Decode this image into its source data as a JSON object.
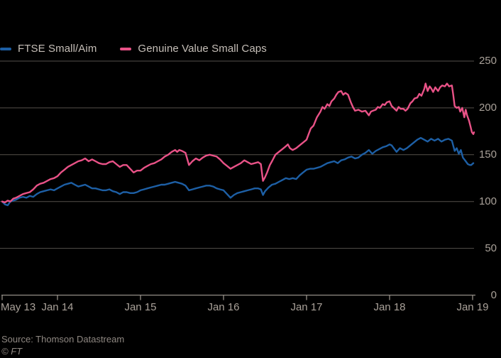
{
  "colors": {
    "background": "#000000",
    "gridline": "#55504b",
    "axis": "#948d86",
    "tick": "#948d86",
    "axis_text": "#a9a199",
    "legend_text": "#c6bfb8",
    "source_text": "#8f8882",
    "series_blue": "#1d5fa5",
    "series_pink": "#e95287"
  },
  "legend": {
    "items": [
      {
        "label": "FTSE Small/Aim",
        "color": "#1d5fa5"
      },
      {
        "label": "Genuine Value Small Caps",
        "color": "#e95287"
      }
    ]
  },
  "footer": {
    "source": "Source: Thomson Datastream",
    "copyright": "© FT"
  },
  "chart_data": {
    "type": "line",
    "title": "",
    "xlabel": "",
    "ylabel": "",
    "x_unit": "months since May 2013",
    "x_tick_labels": [
      "May 13",
      "Jan 14",
      "Jan 15",
      "Jan 16",
      "Jan 17",
      "Jan 18",
      "Jan 19"
    ],
    "x_tick_months": [
      0,
      8,
      20,
      32,
      44,
      56,
      68
    ],
    "y_ticks": [
      0,
      50,
      100,
      150,
      200,
      250
    ],
    "ylim": [
      0,
      250
    ],
    "xlim_months": [
      0,
      68.3
    ],
    "grid": "horizontal",
    "legend_position": "top-left",
    "series": [
      {
        "name": "FTSE Small/Aim",
        "color": "#1d5fa5",
        "points": [
          [
            0,
            100
          ],
          [
            0.4,
            97
          ],
          [
            0.8,
            96
          ],
          [
            1.2,
            100
          ],
          [
            2,
            102
          ],
          [
            2.5,
            104
          ],
          [
            3,
            105
          ],
          [
            3.5,
            104
          ],
          [
            4,
            106
          ],
          [
            4.5,
            105
          ],
          [
            5,
            108
          ],
          [
            5.5,
            110
          ],
          [
            6,
            111
          ],
          [
            6.5,
            112
          ],
          [
            7,
            113
          ],
          [
            7.5,
            112
          ],
          [
            8,
            114
          ],
          [
            8.5,
            116
          ],
          [
            9,
            118
          ],
          [
            9.5,
            119
          ],
          [
            10,
            120
          ],
          [
            10.5,
            118
          ],
          [
            11,
            116
          ],
          [
            11.5,
            117
          ],
          [
            12,
            118
          ],
          [
            12.5,
            116
          ],
          [
            13,
            114
          ],
          [
            13.5,
            114
          ],
          [
            14,
            113
          ],
          [
            14.5,
            112
          ],
          [
            15,
            112
          ],
          [
            15.5,
            113
          ],
          [
            16,
            111
          ],
          [
            16.5,
            110
          ],
          [
            17,
            108
          ],
          [
            17.5,
            110
          ],
          [
            18,
            110
          ],
          [
            18.5,
            109
          ],
          [
            19,
            109
          ],
          [
            19.5,
            110
          ],
          [
            20,
            112
          ],
          [
            20.5,
            113
          ],
          [
            21,
            114
          ],
          [
            21.5,
            115
          ],
          [
            22,
            116
          ],
          [
            22.5,
            117
          ],
          [
            23,
            118
          ],
          [
            23.5,
            118
          ],
          [
            24,
            119
          ],
          [
            24.5,
            120
          ],
          [
            25,
            121
          ],
          [
            25.5,
            120
          ],
          [
            26,
            119
          ],
          [
            26.5,
            117
          ],
          [
            27,
            112
          ],
          [
            27.5,
            113
          ],
          [
            28,
            114
          ],
          [
            28.5,
            115
          ],
          [
            29,
            116
          ],
          [
            29.5,
            117
          ],
          [
            30,
            117
          ],
          [
            30.5,
            116
          ],
          [
            31,
            114
          ],
          [
            31.5,
            113
          ],
          [
            32,
            112
          ],
          [
            32.5,
            108
          ],
          [
            33,
            104
          ],
          [
            33.5,
            107
          ],
          [
            34,
            109
          ],
          [
            34.5,
            110
          ],
          [
            35,
            111
          ],
          [
            35.5,
            112
          ],
          [
            36,
            113
          ],
          [
            36.5,
            114
          ],
          [
            37,
            114
          ],
          [
            37.4,
            113
          ],
          [
            37.7,
            107
          ],
          [
            38,
            111
          ],
          [
            38.5,
            115
          ],
          [
            39,
            118
          ],
          [
            39.5,
            119
          ],
          [
            40,
            121
          ],
          [
            40.5,
            123
          ],
          [
            41,
            125
          ],
          [
            41.5,
            124
          ],
          [
            42,
            125
          ],
          [
            42.5,
            124
          ],
          [
            43,
            128
          ],
          [
            43.5,
            131
          ],
          [
            44,
            134
          ],
          [
            44.5,
            135
          ],
          [
            45,
            135
          ],
          [
            45.5,
            136
          ],
          [
            46,
            137
          ],
          [
            46.5,
            139
          ],
          [
            47,
            141
          ],
          [
            47.5,
            142
          ],
          [
            48,
            143
          ],
          [
            48.5,
            141
          ],
          [
            49,
            144
          ],
          [
            49.5,
            145
          ],
          [
            50,
            147
          ],
          [
            50.5,
            148
          ],
          [
            51,
            146
          ],
          [
            51.5,
            147
          ],
          [
            52,
            150
          ],
          [
            52.5,
            152
          ],
          [
            53,
            155
          ],
          [
            53.5,
            151
          ],
          [
            54,
            154
          ],
          [
            54.5,
            156
          ],
          [
            55,
            158
          ],
          [
            55.5,
            159
          ],
          [
            56,
            161
          ],
          [
            56.3,
            160
          ],
          [
            57,
            153
          ],
          [
            57.5,
            157
          ],
          [
            58,
            155
          ],
          [
            58.5,
            157
          ],
          [
            59,
            160
          ],
          [
            59.5,
            163
          ],
          [
            60,
            166
          ],
          [
            60.5,
            168
          ],
          [
            61,
            166
          ],
          [
            61.5,
            164
          ],
          [
            62,
            167
          ],
          [
            62.5,
            165
          ],
          [
            63,
            167
          ],
          [
            63.5,
            164
          ],
          [
            64,
            166
          ],
          [
            64.5,
            167
          ],
          [
            65,
            165
          ],
          [
            65.4,
            154
          ],
          [
            65.7,
            157
          ],
          [
            66,
            151
          ],
          [
            66.3,
            155
          ],
          [
            66.6,
            147
          ],
          [
            67,
            143
          ],
          [
            67.3,
            140
          ],
          [
            67.6,
            139
          ],
          [
            67.8,
            139
          ],
          [
            68.1,
            141
          ]
        ]
      },
      {
        "name": "Genuine Value Small Caps",
        "color": "#e95287",
        "points": [
          [
            0,
            100
          ],
          [
            0.4,
            99
          ],
          [
            0.8,
            101
          ],
          [
            1.2,
            100
          ],
          [
            1.6,
            103
          ],
          [
            2,
            104
          ],
          [
            2.5,
            106
          ],
          [
            3,
            108
          ],
          [
            3.5,
            109
          ],
          [
            4,
            110
          ],
          [
            4.5,
            113
          ],
          [
            5,
            117
          ],
          [
            5.5,
            119
          ],
          [
            6,
            120
          ],
          [
            6.5,
            122
          ],
          [
            7,
            124
          ],
          [
            7.5,
            125
          ],
          [
            8,
            127
          ],
          [
            8.5,
            131
          ],
          [
            9,
            134
          ],
          [
            9.5,
            137
          ],
          [
            10,
            139
          ],
          [
            10.5,
            141
          ],
          [
            11,
            143
          ],
          [
            11.5,
            144
          ],
          [
            12,
            146
          ],
          [
            12.5,
            143
          ],
          [
            13,
            145
          ],
          [
            13.5,
            143
          ],
          [
            14,
            141
          ],
          [
            14.5,
            140
          ],
          [
            15,
            140
          ],
          [
            15.5,
            142
          ],
          [
            16,
            143
          ],
          [
            16.5,
            140
          ],
          [
            17,
            137
          ],
          [
            17.5,
            139
          ],
          [
            18,
            139
          ],
          [
            18.5,
            135
          ],
          [
            19,
            131
          ],
          [
            19.5,
            133
          ],
          [
            20,
            133
          ],
          [
            20.5,
            136
          ],
          [
            21,
            138
          ],
          [
            21.5,
            140
          ],
          [
            22,
            141
          ],
          [
            22.5,
            143
          ],
          [
            23,
            145
          ],
          [
            23.5,
            148
          ],
          [
            24,
            150
          ],
          [
            24.5,
            153
          ],
          [
            25,
            155
          ],
          [
            25.3,
            153
          ],
          [
            25.6,
            155
          ],
          [
            26,
            154
          ],
          [
            26.5,
            152
          ],
          [
            27,
            139
          ],
          [
            27.5,
            143
          ],
          [
            28,
            146
          ],
          [
            28.5,
            144
          ],
          [
            29,
            147
          ],
          [
            29.5,
            149
          ],
          [
            30,
            150
          ],
          [
            30.5,
            149
          ],
          [
            31,
            148
          ],
          [
            31.5,
            145
          ],
          [
            32,
            141
          ],
          [
            32.5,
            138
          ],
          [
            33,
            135
          ],
          [
            33.5,
            137
          ],
          [
            34,
            139
          ],
          [
            34.5,
            141
          ],
          [
            35,
            144
          ],
          [
            35.5,
            142
          ],
          [
            36,
            140
          ],
          [
            36.5,
            141
          ],
          [
            37,
            142
          ],
          [
            37.4,
            140
          ],
          [
            37.7,
            122
          ],
          [
            38,
            126
          ],
          [
            38.3,
            131
          ],
          [
            38.7,
            139
          ],
          [
            39,
            143
          ],
          [
            39.5,
            150
          ],
          [
            40,
            153
          ],
          [
            40.5,
            156
          ],
          [
            41,
            159
          ],
          [
            41.3,
            161
          ],
          [
            41.6,
            157
          ],
          [
            42,
            155
          ],
          [
            42.5,
            157
          ],
          [
            43,
            160
          ],
          [
            43.5,
            163
          ],
          [
            44,
            166
          ],
          [
            44.3,
            172
          ],
          [
            44.6,
            178
          ],
          [
            45,
            181
          ],
          [
            45.5,
            190
          ],
          [
            46,
            196
          ],
          [
            46.3,
            201
          ],
          [
            46.6,
            199
          ],
          [
            47,
            204
          ],
          [
            47.3,
            202
          ],
          [
            47.6,
            207
          ],
          [
            48,
            210
          ],
          [
            48.3,
            214
          ],
          [
            48.6,
            217
          ],
          [
            49,
            218
          ],
          [
            49.3,
            214
          ],
          [
            49.6,
            216
          ],
          [
            50,
            214
          ],
          [
            50.4,
            206
          ],
          [
            50.7,
            201
          ],
          [
            51,
            197
          ],
          [
            51.5,
            198
          ],
          [
            52,
            196
          ],
          [
            52.5,
            197
          ],
          [
            53,
            192
          ],
          [
            53.3,
            196
          ],
          [
            53.6,
            197
          ],
          [
            54,
            198
          ],
          [
            54.3,
            201
          ],
          [
            54.6,
            200
          ],
          [
            55,
            204
          ],
          [
            55.3,
            203
          ],
          [
            55.6,
            206
          ],
          [
            56,
            207
          ],
          [
            56.3,
            202
          ],
          [
            57,
            197
          ],
          [
            57.3,
            201
          ],
          [
            57.6,
            199
          ],
          [
            58,
            199
          ],
          [
            58.3,
            197
          ],
          [
            58.6,
            199
          ],
          [
            59,
            205
          ],
          [
            59.3,
            207
          ],
          [
            59.6,
            210
          ],
          [
            60,
            211
          ],
          [
            60.3,
            215
          ],
          [
            60.6,
            213
          ],
          [
            61,
            220
          ],
          [
            61.2,
            226
          ],
          [
            61.5,
            218
          ],
          [
            61.8,
            223
          ],
          [
            62,
            221
          ],
          [
            62.3,
            217
          ],
          [
            62.6,
            222
          ],
          [
            63,
            218
          ],
          [
            63.3,
            222
          ],
          [
            63.6,
            224
          ],
          [
            64,
            223
          ],
          [
            64.3,
            226
          ],
          [
            64.6,
            223
          ],
          [
            65,
            224
          ],
          [
            65.2,
            214
          ],
          [
            65.4,
            202
          ],
          [
            65.7,
            200
          ],
          [
            66,
            201
          ],
          [
            66.2,
            196
          ],
          [
            66.5,
            200
          ],
          [
            66.8,
            190
          ],
          [
            67,
            198
          ],
          [
            67.2,
            192
          ],
          [
            67.5,
            186
          ],
          [
            67.7,
            180
          ],
          [
            67.9,
            174
          ],
          [
            68.1,
            172
          ],
          [
            68.2,
            174
          ]
        ]
      }
    ]
  }
}
